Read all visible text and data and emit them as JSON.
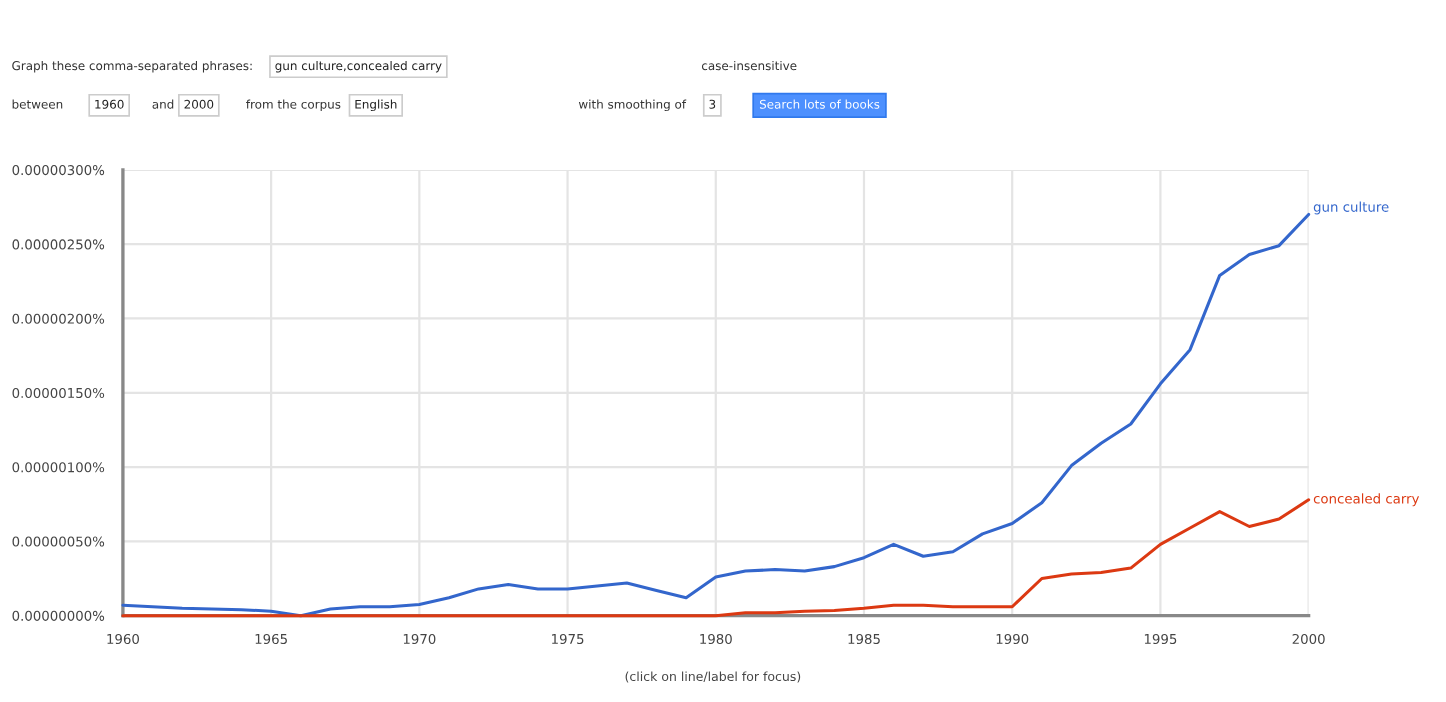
{
  "chart_data": {
    "type": "line",
    "x": [
      1960,
      1961,
      1962,
      1963,
      1964,
      1965,
      1966,
      1967,
      1968,
      1969,
      1970,
      1971,
      1972,
      1973,
      1974,
      1975,
      1976,
      1977,
      1978,
      1979,
      1980,
      1981,
      1982,
      1983,
      1984,
      1985,
      1986,
      1987,
      1988,
      1989,
      1990,
      1991,
      1992,
      1993,
      1994,
      1995,
      1996,
      1997,
      1998,
      1999,
      2000
    ],
    "series": [
      {
        "name": "gun culture",
        "color": "#3366cc",
        "values": [
          7e-08,
          6e-08,
          5e-08,
          4.5e-08,
          4e-08,
          3e-08,
          0,
          4.5e-08,
          6e-08,
          6e-08,
          7.5e-08,
          1.2e-07,
          1.8e-07,
          2.1e-07,
          1.8e-07,
          1.8e-07,
          2e-07,
          2.2e-07,
          1.7e-07,
          1.2e-07,
          2.6e-07,
          3e-07,
          3.1e-07,
          3e-07,
          3.3e-07,
          3.9e-07,
          4.8e-07,
          4e-07,
          4.3e-07,
          5.5e-07,
          6.2e-07,
          7.6e-07,
          1.01e-06,
          1.16e-06,
          1.29e-06,
          1.56e-06,
          1.79e-06,
          2.29e-06,
          2.43e-06,
          2.49e-06,
          2.7e-06
        ]
      },
      {
        "name": "concealed carry",
        "color": "#dc3912",
        "values": [
          0,
          0,
          0,
          0,
          0,
          0,
          0,
          0,
          0,
          0,
          0,
          0,
          0,
          0,
          0,
          0,
          0,
          0,
          0,
          0,
          0,
          2e-08,
          2e-08,
          3e-08,
          3.5e-08,
          5e-08,
          7e-08,
          7e-08,
          6e-08,
          6e-08,
          6e-08,
          2.5e-07,
          2.8e-07,
          2.9e-07,
          3.2e-07,
          4.8e-07,
          5.9e-07,
          7e-07,
          6e-07,
          6.5e-07,
          7.8e-07
        ]
      }
    ],
    "xlim": [
      1960,
      2000
    ],
    "xticks": [
      1960,
      1965,
      1970,
      1975,
      1980,
      1985,
      1990,
      1995,
      2000
    ],
    "ylim": [
      0,
      3e-06
    ],
    "yticks": [
      {
        "value": 0,
        "label": "0.00000000%"
      },
      {
        "value": 5e-07,
        "label": "0.00000050%"
      },
      {
        "value": 1e-06,
        "label": "0.00000100%"
      },
      {
        "value": 1.5e-06,
        "label": "0.00000150%"
      },
      {
        "value": 2e-06,
        "label": "0.00000200%"
      },
      {
        "value": 2.5e-06,
        "label": "0.00000250%"
      },
      {
        "value": 3e-06,
        "label": "0.00000300%"
      }
    ],
    "grid": true,
    "legend": false,
    "marker": "none",
    "line_style": "solid",
    "annotations": [
      "Graph these comma-separated phrases:",
      "gun culture,concealed carry",
      "case-insensitive",
      "between",
      "1960",
      "and",
      "2000",
      "from the corpus",
      "English",
      "with smoothing of",
      "3",
      "Search lots of books",
      "(click on line/label for focus)"
    ]
  }
}
